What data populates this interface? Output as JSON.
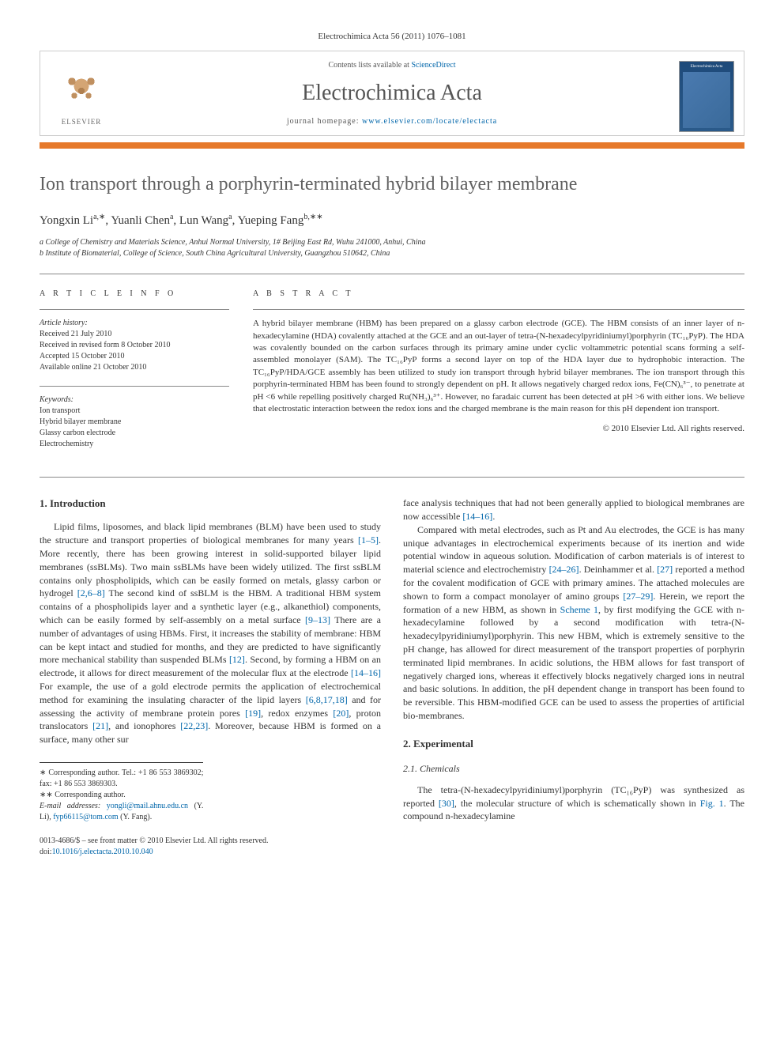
{
  "citation": "Electrochimica Acta 56 (2011) 1076–1081",
  "header": {
    "contents_prefix": "Contents lists available at ",
    "contents_link": "ScienceDirect",
    "journal_title": "Electrochimica Acta",
    "homepage_prefix": "journal homepage: ",
    "homepage_url": "www.elsevier.com/locate/electacta",
    "elsevier_label": "ELSEVIER",
    "cover_title": "Electrochimica Acta"
  },
  "article": {
    "title": "Ion transport through a porphyrin-terminated hybrid bilayer membrane",
    "authors_html": "Yongxin Li<sup>a,∗</sup>, Yuanli Chen<sup>a</sup>, Lun Wang<sup>a</sup>, Yueping Fang<sup>b,∗∗</sup>",
    "affiliations": [
      "a College of Chemistry and Materials Science, Anhui Normal University, 1# Beijing East Rd, Wuhu 241000, Anhui, China",
      "b Institute of Biomaterial, College of Science, South China Agricultural University, Guangzhou 510642, China"
    ]
  },
  "meta": {
    "info_head": "A R T I C L E   I N F O",
    "abstract_head": "A B S T R A C T",
    "history_label": "Article history:",
    "history": [
      "Received 21 July 2010",
      "Received in revised form 8 October 2010",
      "Accepted 15 October 2010",
      "Available online 21 October 2010"
    ],
    "keywords_label": "Keywords:",
    "keywords": [
      "Ion transport",
      "Hybrid bilayer membrane",
      "Glassy carbon electrode",
      "Electrochemistry"
    ]
  },
  "abstract": {
    "text": "A hybrid bilayer membrane (HBM) has been prepared on a glassy carbon electrode (GCE). The HBM consists of an inner layer of n-hexadecylamine (HDA) covalently attached at the GCE and an out-layer of tetra-(N-hexadecylpyridiniumyl)porphyrin (TC₁₆PyP). The HDA was covalently bounded on the carbon surfaces through its primary amine under cyclic voltammetric potential scans forming a self-assembled monolayer (SAM). The TC₁₆PyP forms a second layer on top of the HDA layer due to hydrophobic interaction. The TC₁₆PyP/HDA/GCE assembly has been utilized to study ion transport through hybrid bilayer membranes. The ion transport through this porphyrin-terminated HBM has been found to strongly dependent on pH. It allows negatively charged redox ions, Fe(CN)₆³⁻, to penetrate at pH <6 while repelling positively charged Ru(NH₃)₆³⁺. However, no faradaic current has been detected at pH >6 with either ions. We believe that electrostatic interaction between the redox ions and the charged membrane is the main reason for this pH dependent ion transport.",
    "copyright": "© 2010 Elsevier Ltd. All rights reserved."
  },
  "body": {
    "h1": "1. Introduction",
    "p1a": "Lipid films, liposomes, and black lipid membranes (BLM) have been used to study the structure and transport properties of biological membranes for many years ",
    "r1": "[1–5]",
    "p1b": ". More recently, there has been growing interest in solid-supported bilayer lipid membranes (ssBLMs). Two main ssBLMs have been widely utilized. The first ssBLM contains only phospholipids, which can be easily formed on metals, glassy carbon or hydrogel ",
    "r2": "[2,6–8]",
    "p1c": " The second kind of ssBLM is the HBM. A traditional HBM system contains of a phospholipids layer and a synthetic layer (e.g., alkanethiol) components, which can be easily formed by self-assembly on a metal surface ",
    "r3": "[9–13]",
    "p1d": " There are a number of advantages of using HBMs. First, it increases the stability of membrane: HBM can be kept intact and studied for months, and they are predicted to have significantly more mechanical stability than suspended BLMs ",
    "r4": "[12]",
    "p1e": ". Second, by forming a HBM on an electrode, it allows for direct measurement of the molecular flux at the electrode ",
    "r5": "[14–16]",
    "p1f": " For example, the use of a gold electrode permits the application of electrochemical method for examining the insulating character of the lipid layers ",
    "r6": "[6,8,17,18]",
    "p1g": " and for assessing the activity of membrane protein pores ",
    "r7": "[19]",
    "p1h": ", redox enzymes ",
    "r8": "[20]",
    "p1i": ", proton translocators ",
    "r9": "[21]",
    "p1j": ", and ionophores ",
    "r10": "[22,23]",
    "p1k": ". Moreover, because HBM is formed on a surface, many other sur",
    "p2a": "face analysis techniques that had not been generally applied to biological membranes are now accessible ",
    "r11": "[14–16]",
    "p2b": ".",
    "p3a": "Compared with metal electrodes, such as Pt and Au electrodes, the GCE is has many unique advantages in electrochemical experiments because of its inertion and wide potential window in aqueous solution. Modification of carbon materials is of interest to material science and electrochemistry ",
    "r12": "[24–26]",
    "p3b": ". Deinhammer et al. ",
    "r13": "[27]",
    "p3c": " reported a method for the covalent modification of GCE with primary amines. The attached molecules are shown to form a compact monolayer of amino groups ",
    "r14": "[27–29]",
    "p3d": ". Herein, we report the formation of a new HBM, as shown in ",
    "r15": "Scheme 1",
    "p3e": ", by first modifying the GCE with n-hexadecylamine followed by a second modification with tetra-(N-hexadecylpyridiniumyl)porphyrin. This new HBM, which is extremely sensitive to the pH change, has allowed for direct measurement of the transport properties of porphyrin terminated lipid membranes. In acidic solutions, the HBM allows for fast transport of negatively charged ions, whereas it effectively blocks negatively charged ions in neutral and basic solutions. In addition, the pH dependent change in transport has been found to be reversible. This HBM-modified GCE can be used to assess the properties of artificial bio-membranes.",
    "h2": "2. Experimental",
    "h21": "2.1. Chemicals",
    "p4a": "The tetra-(N-hexadecylpyridiniumyl)porphyrin (TC₁₆PyP) was synthesized as reported ",
    "r16": "[30]",
    "p4b": ", the molecular structure of which is schematically shown in ",
    "r17": "Fig. 1",
    "p4c": ". The compound n-hexadecylamine"
  },
  "footnotes": {
    "f1": "∗ Corresponding author. Tel.: +1 86 553 3869302; fax: +1 86 553 3869303.",
    "f2": "∗∗ Corresponding author.",
    "email_label": "E-mail addresses: ",
    "email1": "yongli@mail.ahnu.edu.cn",
    "email1_who": " (Y. Li), ",
    "email2": "fyp66115@tom.com",
    "email2_who": " (Y. Fang)."
  },
  "footer": {
    "line1": "0013-4686/$ – see front matter © 2010 Elsevier Ltd. All rights reserved.",
    "doi_label": "doi:",
    "doi": "10.1016/j.electacta.2010.10.040"
  }
}
